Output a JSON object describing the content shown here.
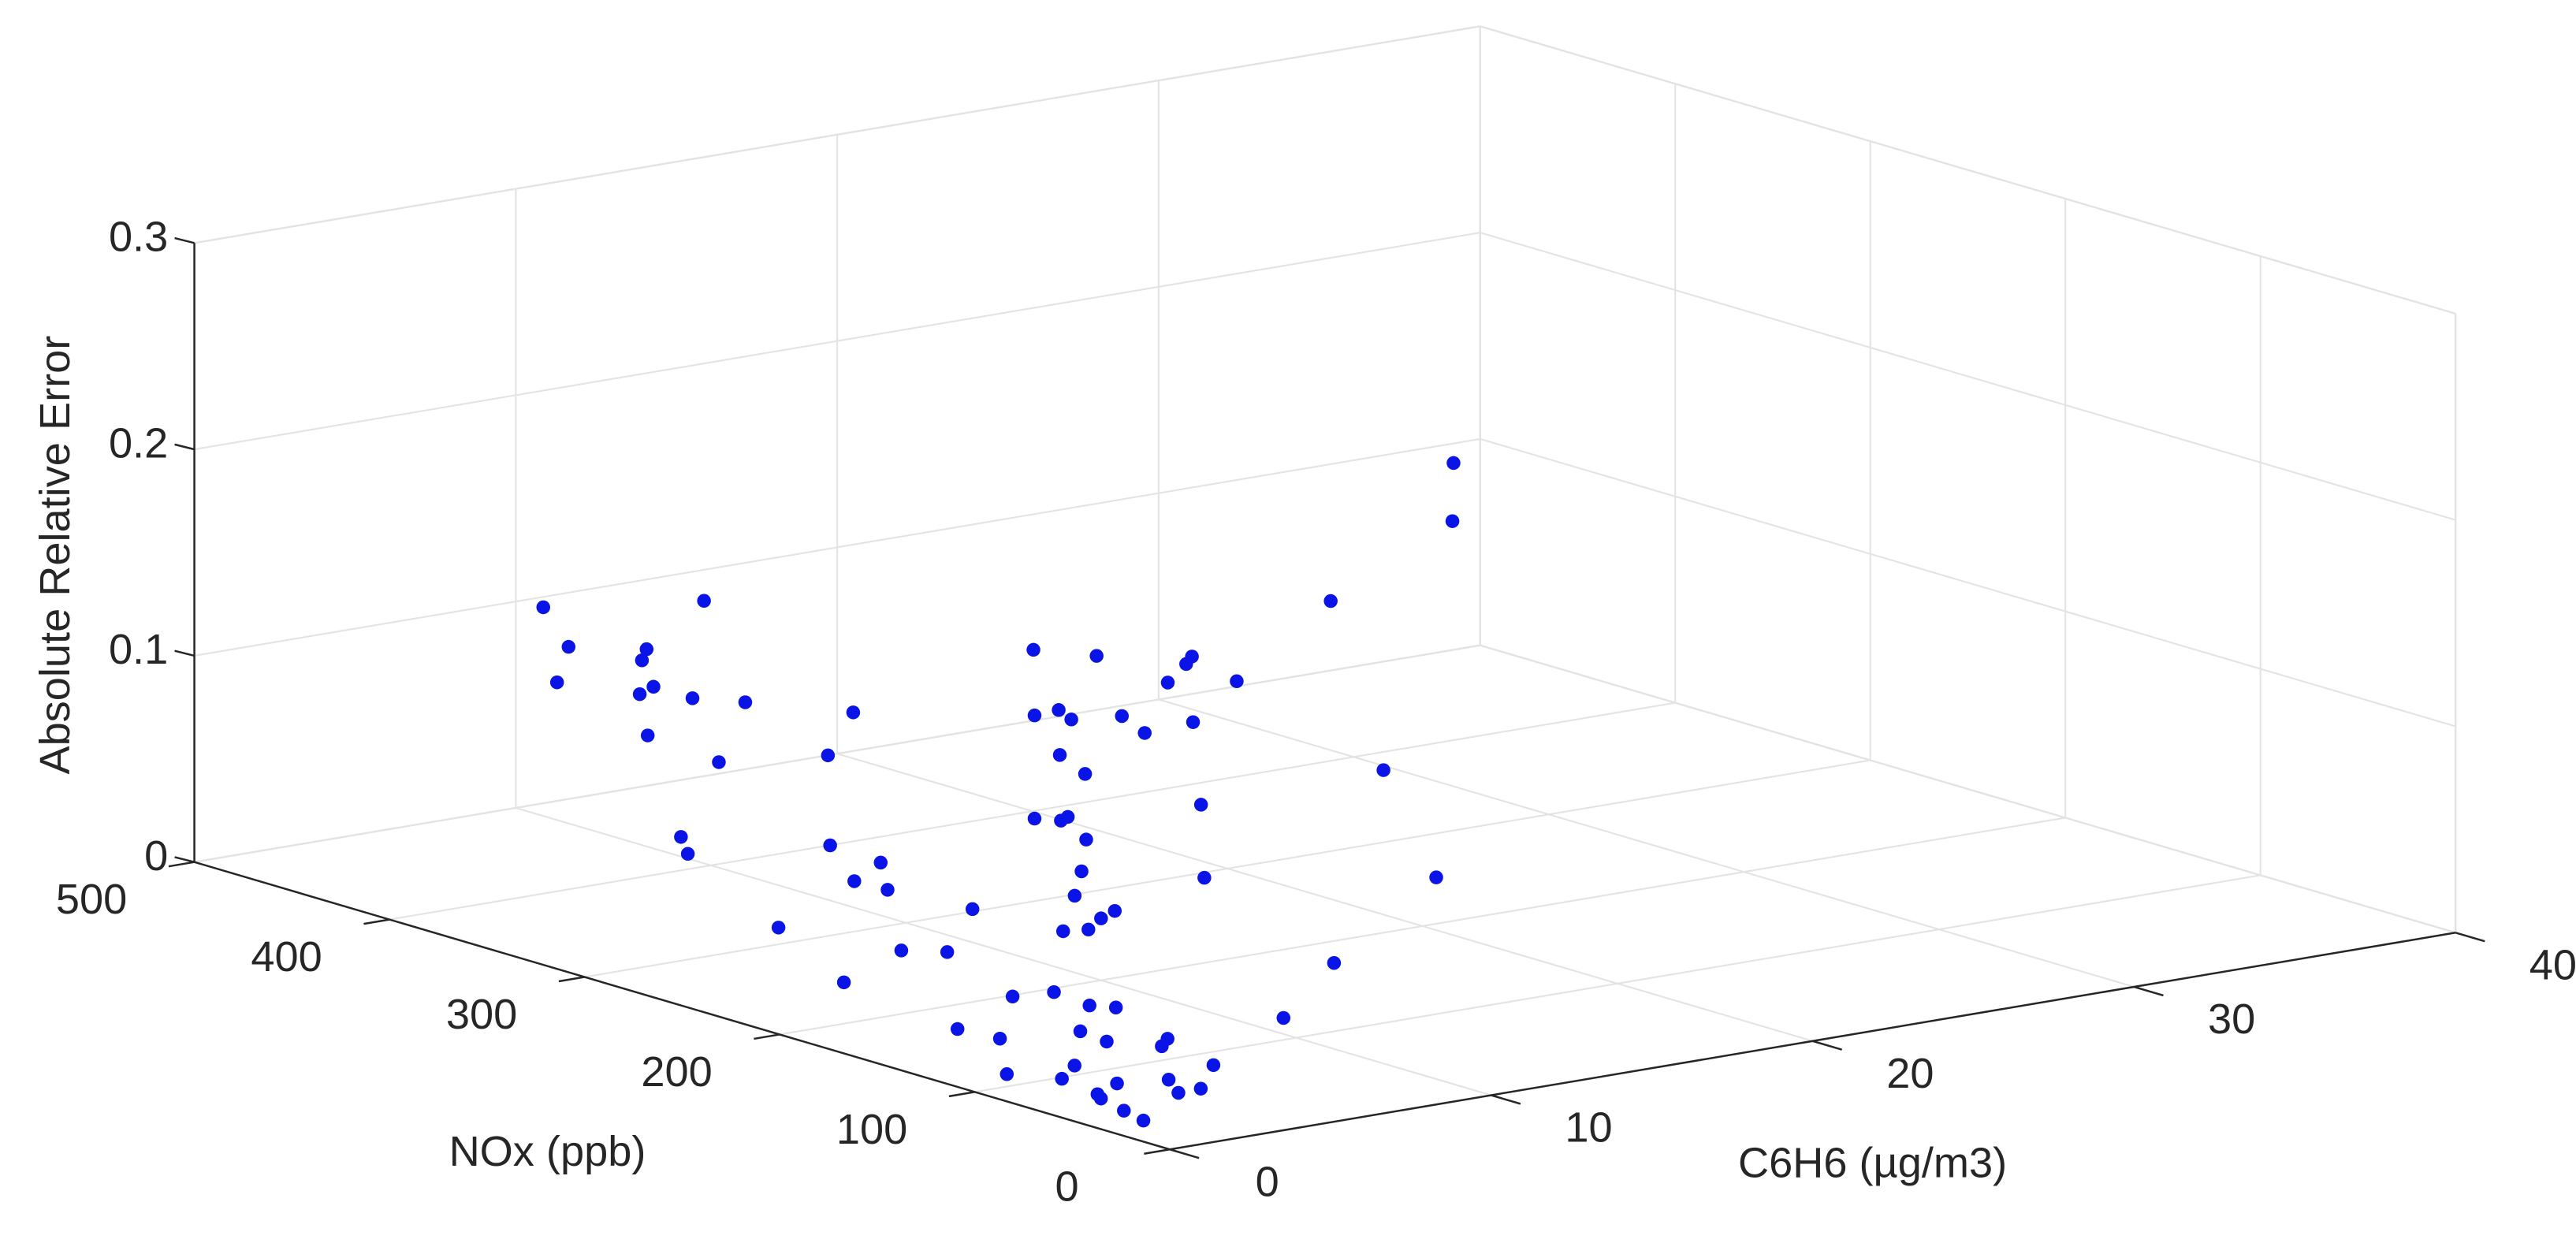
{
  "chart_data": {
    "type": "scatter3d",
    "xlabel": "C6H6 (µg/m3)",
    "ylabel": "NOx (ppb)",
    "zlabel": "Absolute Relative Error",
    "color": "#0a14e6",
    "grid": true,
    "xlim": [
      0,
      40
    ],
    "xticks": [
      0,
      10,
      20,
      30,
      40
    ],
    "ylim": [
      0,
      500
    ],
    "yticks": [
      0,
      100,
      200,
      300,
      400,
      500
    ],
    "zlim": [
      0,
      0.3
    ],
    "zticks": [
      0,
      0.1,
      0.2,
      0.3
    ],
    "x": [
      1,
      2,
      1.5,
      3,
      2,
      4,
      2.5,
      1,
      3.5,
      5,
      2,
      3,
      6,
      4,
      1.5,
      2.5,
      7,
      5,
      3,
      8,
      4.5,
      6,
      9,
      3,
      5.5,
      7,
      10,
      4,
      8,
      6,
      11,
      12,
      9,
      5,
      13,
      7,
      14,
      10,
      15,
      8,
      16,
      12,
      18,
      11,
      20,
      14,
      22,
      17,
      24,
      19,
      26,
      21,
      28,
      23,
      30,
      25,
      3,
      5,
      7,
      9,
      2,
      4,
      6,
      8,
      10,
      12,
      1,
      3,
      5,
      24,
      27,
      18,
      15,
      20,
      22,
      13,
      6,
      9,
      4,
      2
    ],
    "y": [
      40,
      60,
      80,
      50,
      120,
      70,
      150,
      100,
      90,
      110,
      200,
      130,
      140,
      180,
      60,
      90,
      170,
      220,
      250,
      160,
      120,
      200,
      190,
      300,
      150,
      260,
      210,
      240,
      280,
      330,
      230,
      250,
      310,
      350,
      270,
      380,
      300,
      340,
      290,
      400,
      320,
      360,
      340,
      420,
      380,
      300,
      400,
      350,
      420,
      370,
      420,
      330,
      450,
      380,
      460,
      400,
      320,
      300,
      360,
      420,
      280,
      380,
      420,
      440,
      200,
      180,
      30,
      45,
      60,
      250,
      300,
      160,
      260,
      220,
      280,
      130,
      100,
      90,
      50,
      70
    ],
    "z": [
      0.005,
      0.01,
      0.008,
      0.012,
      0.015,
      0.02,
      0.01,
      0.006,
      0.018,
      0.025,
      0.02,
      0.03,
      0.015,
      0.035,
      0.004,
      0.009,
      0.04,
      0.022,
      0.03,
      0.05,
      0.012,
      0.045,
      0.03,
      0.06,
      0.02,
      0.035,
      0.05,
      0.07,
      0.04,
      0.08,
      0.03,
      0.06,
      0.02,
      0.09,
      0.05,
      0.1,
      0.04,
      0.07,
      0.03,
      0.11,
      0.06,
      0.08,
      0.04,
      0.12,
      0.05,
      0.09,
      0.07,
      0.1,
      0.03,
      0.06,
      0.05,
      0.02,
      0.04,
      0.06,
      0.02,
      0.03,
      0.14,
      0.12,
      0.1,
      0.08,
      0.06,
      0.11,
      0.13,
      0.1,
      0.03,
      0.05,
      0.003,
      0.007,
      0.011,
      0.2,
      0.15,
      0.04,
      0.09,
      0.07,
      0.13,
      0.02,
      0.01,
      0.015,
      0.005,
      0.002
    ]
  }
}
